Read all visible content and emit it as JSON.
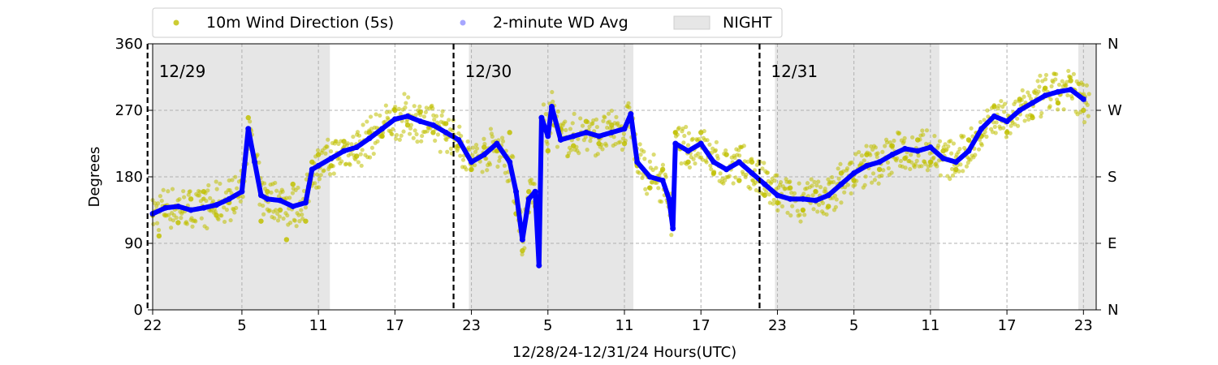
{
  "chart_data": {
    "type": "scatter",
    "xlabel": "12/28/24-12/31/24  Hours(UTC)",
    "ylabel": "Degrees",
    "xlim": [
      0,
      74
    ],
    "ylim": [
      0,
      360
    ],
    "x_ticks": [
      {
        "x": 0,
        "label": "22"
      },
      {
        "x": 7,
        "label": "5"
      },
      {
        "x": 13,
        "label": "11"
      },
      {
        "x": 19,
        "label": "17"
      },
      {
        "x": 25,
        "label": "23"
      },
      {
        "x": 31,
        "label": "5"
      },
      {
        "x": 37,
        "label": "11"
      },
      {
        "x": 43,
        "label": "17"
      },
      {
        "x": 49,
        "label": "23"
      },
      {
        "x": 55,
        "label": "5"
      },
      {
        "x": 61,
        "label": "11"
      },
      {
        "x": 67,
        "label": "17"
      },
      {
        "x": 73,
        "label": "23"
      }
    ],
    "y_ticks": [
      0,
      90,
      180,
      270,
      360
    ],
    "y2_ticks": [
      {
        "y": 0,
        "label": "N"
      },
      {
        "y": 90,
        "label": "E"
      },
      {
        "y": 180,
        "label": "S"
      },
      {
        "y": 270,
        "label": "W"
      },
      {
        "y": 360,
        "label": "N"
      }
    ],
    "grid": true,
    "legend_position": "top",
    "legend": [
      {
        "label": "10m Wind Direction (5s)",
        "kind": "marker",
        "color": "#bfbf00"
      },
      {
        "label": "2-minute WD Avg",
        "kind": "marker",
        "color": "#0000ff"
      },
      {
        "label": "NIGHT",
        "kind": "patch",
        "color": "#e6e6e6"
      }
    ],
    "night_spans": [
      [
        0,
        13.9
      ],
      [
        24.8,
        37.7
      ],
      [
        48.8,
        61.7
      ],
      [
        72.6,
        74
      ]
    ],
    "day_markers": [
      {
        "x": 1,
        "label": "12/29"
      },
      {
        "x": 25,
        "label": "12/30"
      },
      {
        "x": 49,
        "label": "12/31"
      }
    ],
    "series": [
      {
        "name": "2-minute WD Avg",
        "color": "#0000ff",
        "points": [
          [
            0,
            130
          ],
          [
            1,
            138
          ],
          [
            2,
            140
          ],
          [
            3,
            135
          ],
          [
            4,
            138
          ],
          [
            5,
            142
          ],
          [
            6,
            150
          ],
          [
            7,
            160
          ],
          [
            7.5,
            245
          ],
          [
            8,
            200
          ],
          [
            8.5,
            155
          ],
          [
            9,
            150
          ],
          [
            10,
            148
          ],
          [
            11,
            140
          ],
          [
            12,
            145
          ],
          [
            12.5,
            190
          ],
          [
            13,
            195
          ],
          [
            14,
            205
          ],
          [
            15,
            215
          ],
          [
            16,
            220
          ],
          [
            17,
            232
          ],
          [
            18,
            245
          ],
          [
            19,
            258
          ],
          [
            20,
            262
          ],
          [
            21,
            255
          ],
          [
            22,
            250
          ],
          [
            23,
            240
          ],
          [
            24,
            230
          ],
          [
            25,
            200
          ],
          [
            26,
            210
          ],
          [
            27,
            225
          ],
          [
            28,
            200
          ],
          [
            28.5,
            160
          ],
          [
            29,
            95
          ],
          [
            29.5,
            150
          ],
          [
            30,
            160
          ],
          [
            30.3,
            60
          ],
          [
            30.5,
            260
          ],
          [
            31,
            235
          ],
          [
            31.3,
            275
          ],
          [
            32,
            230
          ],
          [
            33,
            235
          ],
          [
            34,
            240
          ],
          [
            35,
            235
          ],
          [
            36,
            240
          ],
          [
            37,
            245
          ],
          [
            37.5,
            265
          ],
          [
            38,
            200
          ],
          [
            39,
            180
          ],
          [
            40,
            175
          ],
          [
            40.5,
            150
          ],
          [
            40.8,
            110
          ],
          [
            41,
            225
          ],
          [
            42,
            215
          ],
          [
            43,
            225
          ],
          [
            44,
            200
          ],
          [
            45,
            190
          ],
          [
            46,
            200
          ],
          [
            47,
            185
          ],
          [
            48,
            170
          ],
          [
            49,
            155
          ],
          [
            50,
            150
          ],
          [
            51,
            150
          ],
          [
            52,
            148
          ],
          [
            53,
            155
          ],
          [
            54,
            170
          ],
          [
            55,
            185
          ],
          [
            56,
            195
          ],
          [
            57,
            200
          ],
          [
            58,
            210
          ],
          [
            59,
            218
          ],
          [
            60,
            215
          ],
          [
            61,
            220
          ],
          [
            62,
            205
          ],
          [
            63,
            200
          ],
          [
            64,
            215
          ],
          [
            65,
            245
          ],
          [
            66,
            262
          ],
          [
            67,
            255
          ],
          [
            68,
            270
          ],
          [
            69,
            280
          ],
          [
            70,
            290
          ],
          [
            71,
            295
          ],
          [
            72,
            298
          ],
          [
            73,
            285
          ]
        ]
      },
      {
        "name": "10m Wind Direction (5s)",
        "color": "#bfbf00",
        "points": [
          [
            0,
            128
          ],
          [
            0.5,
            100
          ],
          [
            1,
            140
          ],
          [
            2,
            118
          ],
          [
            3,
            150
          ],
          [
            4,
            160
          ],
          [
            5,
            128
          ],
          [
            6,
            145
          ],
          [
            7,
            175
          ],
          [
            7.5,
            260
          ],
          [
            8,
            205
          ],
          [
            8.5,
            120
          ],
          [
            9,
            160
          ],
          [
            10,
            135
          ],
          [
            10.5,
            95
          ],
          [
            11,
            170
          ],
          [
            12,
            120
          ],
          [
            12.5,
            200
          ],
          [
            13,
            210
          ],
          [
            14,
            195
          ],
          [
            15,
            228
          ],
          [
            16,
            208
          ],
          [
            17,
            240
          ],
          [
            18,
            235
          ],
          [
            19,
            270
          ],
          [
            20,
            250
          ],
          [
            21,
            268
          ],
          [
            22,
            240
          ],
          [
            23,
            252
          ],
          [
            24,
            222
          ],
          [
            25,
            190
          ],
          [
            26,
            220
          ],
          [
            27,
            215
          ],
          [
            28,
            240
          ],
          [
            28.5,
            130
          ],
          [
            29,
            80
          ],
          [
            29.5,
            160
          ],
          [
            30,
            140
          ],
          [
            31,
            215
          ],
          [
            31.5,
            250
          ],
          [
            32,
            245
          ],
          [
            33,
            222
          ],
          [
            34,
            255
          ],
          [
            35,
            225
          ],
          [
            36,
            250
          ],
          [
            37,
            225
          ],
          [
            38,
            195
          ],
          [
            39,
            165
          ],
          [
            40,
            190
          ],
          [
            41,
            240
          ],
          [
            42,
            200
          ],
          [
            43,
            240
          ],
          [
            44,
            185
          ],
          [
            45,
            210
          ],
          [
            46,
            175
          ],
          [
            47,
            200
          ],
          [
            48,
            155
          ],
          [
            49,
            145
          ],
          [
            50,
            165
          ],
          [
            51,
            135
          ],
          [
            52,
            160
          ],
          [
            53,
            140
          ],
          [
            54,
            185
          ],
          [
            55,
            175
          ],
          [
            56,
            210
          ],
          [
            57,
            190
          ],
          [
            58,
            222
          ],
          [
            59,
            205
          ],
          [
            60,
            230
          ],
          [
            61,
            200
          ],
          [
            62,
            215
          ],
          [
            63,
            190
          ],
          [
            64,
            230
          ],
          [
            65,
            235
          ],
          [
            66,
            275
          ],
          [
            67,
            240
          ],
          [
            68,
            285
          ],
          [
            69,
            260
          ],
          [
            70,
            300
          ],
          [
            71,
            280
          ],
          [
            72,
            310
          ],
          [
            73,
            270
          ]
        ]
      }
    ]
  }
}
